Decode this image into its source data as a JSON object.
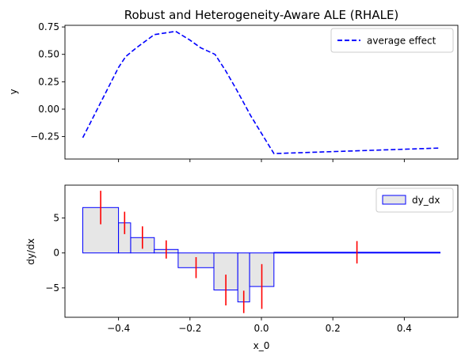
{
  "chart_data": [
    {
      "type": "line",
      "title": "Robust and Heterogeneity-Aware ALE (RHALE)",
      "xlabel": "",
      "ylabel": "y",
      "xlim": [
        -0.55,
        0.55
      ],
      "ylim": [
        -0.455,
        0.765
      ],
      "xticks": [
        -0.4,
        -0.2,
        0.0,
        0.2,
        0.4
      ],
      "xtick_labels_shown": false,
      "yticks": [
        -0.25,
        0.0,
        0.25,
        0.5,
        0.75
      ],
      "ytick_labels": [
        "−0.25",
        "0.00",
        "0.25",
        "0.50",
        "0.75"
      ],
      "legend": {
        "position": "upper right",
        "entries": [
          "average effect"
        ]
      },
      "grid": false,
      "series": [
        {
          "name": "average effect",
          "color": "#0000ff",
          "style": "dashed",
          "x": [
            -0.5,
            -0.4,
            -0.38,
            -0.35,
            -0.3,
            -0.24,
            -0.2,
            -0.17,
            -0.13,
            -0.1,
            -0.07,
            -0.03,
            0.0,
            0.035,
            0.5
          ],
          "y": [
            -0.26,
            0.38,
            0.48,
            0.56,
            0.68,
            0.71,
            0.63,
            0.56,
            0.5,
            0.35,
            0.18,
            -0.06,
            -0.22,
            -0.405,
            -0.355
          ]
        }
      ]
    },
    {
      "type": "bar",
      "xlabel": "x_0",
      "ylabel": "dy/dx",
      "xlim": [
        -0.55,
        0.55
      ],
      "ylim": [
        -9.2,
        9.7
      ],
      "xticks": [
        -0.4,
        -0.2,
        0.0,
        0.2,
        0.4
      ],
      "xtick_labels": [
        "−0.4",
        "−0.2",
        "0.0",
        "0.2",
        "0.4"
      ],
      "yticks": [
        -5,
        0,
        5
      ],
      "ytick_labels": [
        "−5",
        "0",
        "5"
      ],
      "legend": {
        "position": "upper right",
        "entries": [
          "dy_dx"
        ]
      },
      "grid": false,
      "bar_style": {
        "fill": "#e6e6e6",
        "edge": "#0000ff",
        "error_color": "#ff0000"
      },
      "bins": [
        {
          "left": -0.5,
          "right": -0.4,
          "value": 6.5,
          "err": 2.4
        },
        {
          "left": -0.4,
          "right": -0.366,
          "value": 4.3,
          "err": 1.6
        },
        {
          "left": -0.366,
          "right": -0.3,
          "value": 2.2,
          "err": 1.6
        },
        {
          "left": -0.3,
          "right": -0.233,
          "value": 0.5,
          "err": 1.3
        },
        {
          "left": -0.233,
          "right": -0.133,
          "value": -2.1,
          "err": 1.5
        },
        {
          "left": -0.133,
          "right": -0.066,
          "value": -5.3,
          "err": 2.2
        },
        {
          "left": -0.066,
          "right": -0.033,
          "value": -7.0,
          "err": 1.6
        },
        {
          "left": -0.033,
          "right": 0.035,
          "value": -4.8,
          "err": 3.2
        },
        {
          "left": 0.035,
          "right": 0.5,
          "value": 0.1,
          "err": 1.6
        }
      ]
    }
  ]
}
